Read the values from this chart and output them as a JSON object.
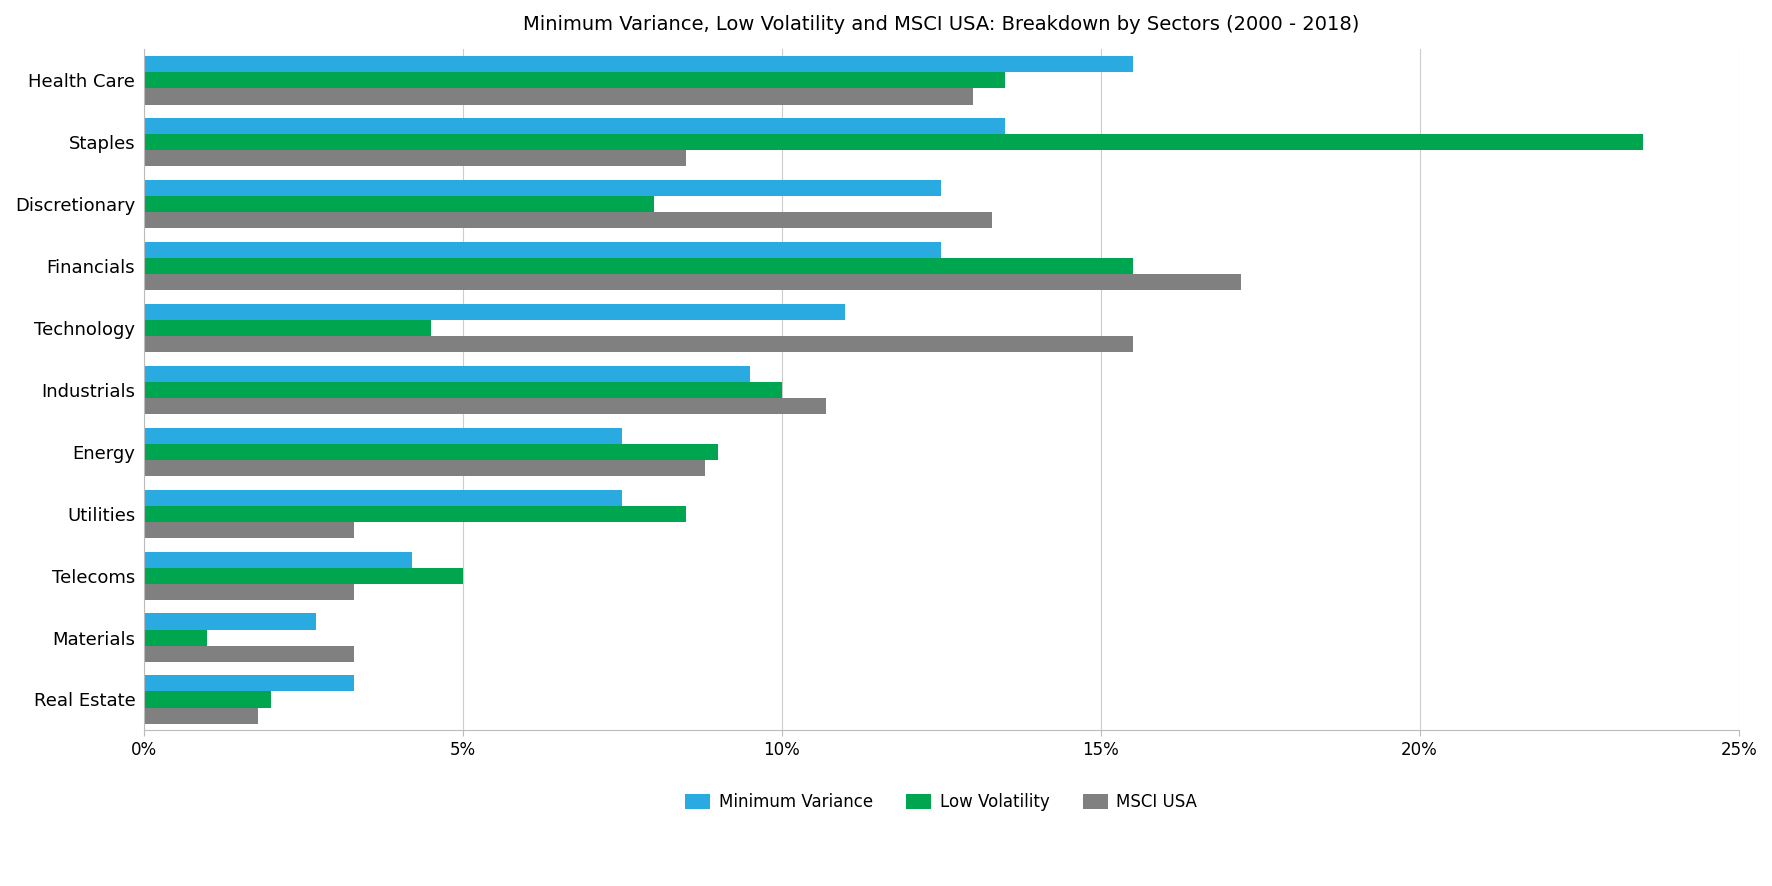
{
  "title": "Minimum Variance, Low Volatility and MSCI USA: Breakdown by Sectors (2000 - 2018)",
  "categories": [
    "Health Care",
    "Staples",
    "Discretionary",
    "Financials",
    "Technology",
    "Industrials",
    "Energy",
    "Utilities",
    "Telecoms",
    "Materials",
    "Real Estate"
  ],
  "min_variance": [
    15.5,
    13.5,
    12.5,
    12.5,
    11.0,
    9.5,
    7.5,
    7.5,
    4.2,
    2.7,
    3.3
  ],
  "low_volatility": [
    13.5,
    23.5,
    8.0,
    15.5,
    4.5,
    10.0,
    9.0,
    8.5,
    5.0,
    1.0,
    2.0
  ],
  "msci_usa": [
    13.0,
    8.5,
    13.3,
    17.2,
    15.5,
    10.7,
    8.8,
    3.3,
    3.3,
    3.3,
    1.8
  ],
  "colors": {
    "min_variance": "#29ABE2",
    "low_volatility": "#00A550",
    "msci_usa": "#808080"
  },
  "xlim": [
    0,
    25
  ],
  "xticks": [
    0,
    5,
    10,
    15,
    20,
    25
  ],
  "xticklabels": [
    "0%",
    "5%",
    "10%",
    "15%",
    "20%",
    "25%"
  ],
  "legend_labels": [
    "Minimum Variance",
    "Low Volatility",
    "MSCI USA"
  ],
  "bar_height": 0.26,
  "figsize": [
    17.72,
    8.86
  ],
  "dpi": 100
}
